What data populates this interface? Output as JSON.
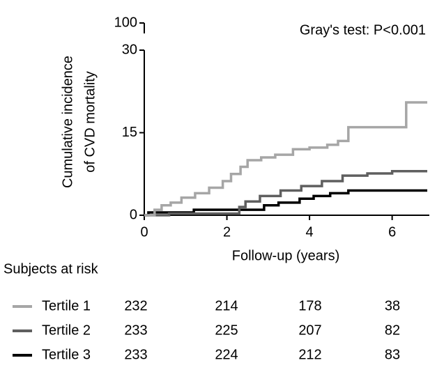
{
  "chart_data": {
    "type": "step",
    "annotation": "Gray's test: P<0.001",
    "ylabel": [
      "Cumulative incidence",
      "of CVD mortality"
    ],
    "xlabel": "Follow-up (years)",
    "xlim": [
      0,
      6.9
    ],
    "xticks": [
      0,
      2,
      4,
      6
    ],
    "ylim": [
      0,
      30
    ],
    "yticks": [
      0,
      15,
      30
    ],
    "ybreak_tick": 100,
    "risk_title": "Subjects at risk",
    "series": [
      {
        "name": "Tertile 1",
        "color": "#a6a6a6",
        "x": [
          0,
          0.25,
          0.42,
          0.64,
          0.9,
          1.23,
          1.57,
          1.9,
          2.1,
          2.33,
          2.5,
          2.83,
          3.17,
          3.6,
          4.0,
          4.43,
          4.69,
          4.94,
          6.34,
          6.85
        ],
        "values": [
          0,
          1,
          1.8,
          2.3,
          3.2,
          4,
          5,
          6.2,
          7.5,
          8.8,
          10,
          10.5,
          11,
          12,
          12.3,
          12.8,
          13.5,
          16,
          20.5,
          20.5
        ],
        "at_risk": [
          232,
          214,
          178,
          38
        ]
      },
      {
        "name": "Tertile 2",
        "color": "#5f5f5f",
        "x": [
          0,
          0.6,
          2.3,
          2.45,
          2.8,
          3.3,
          3.8,
          4.3,
          4.8,
          5.4,
          6.0,
          6.85
        ],
        "values": [
          0,
          0.3,
          1.5,
          2.5,
          3.5,
          4.5,
          5.3,
          6.2,
          7.2,
          7.6,
          8.0,
          8.0
        ],
        "at_risk": [
          233,
          225,
          207,
          82
        ]
      },
      {
        "name": "Tertile 3",
        "color": "#000000",
        "x": [
          0,
          0.1,
          1.2,
          2.9,
          3.25,
          3.76,
          4.1,
          4.5,
          4.94,
          6.85
        ],
        "values": [
          0,
          0.5,
          1.0,
          1.8,
          2.3,
          3.0,
          3.5,
          4.0,
          4.5,
          4.5
        ],
        "at_risk": [
          233,
          224,
          212,
          83
        ]
      }
    ]
  }
}
